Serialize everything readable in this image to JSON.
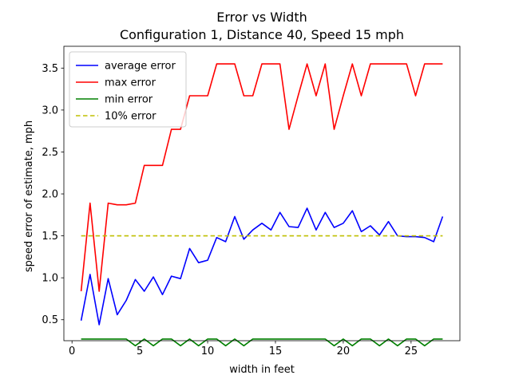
{
  "chart_data": {
    "type": "line",
    "title": "Error vs Width",
    "subtitle": "Configuration 1, Distance 40, Speed 15 mph",
    "xlabel": "width in feet",
    "ylabel": "speed error of estimate, mph",
    "xlim": [
      -0.6,
      28.6
    ],
    "ylim": [
      0.25,
      3.76
    ],
    "xticks": [
      0,
      5,
      10,
      15,
      20,
      25
    ],
    "yticks": [
      0.5,
      1.0,
      1.5,
      2.0,
      2.5,
      3.0,
      3.5
    ],
    "ytick_labels": [
      "0.5",
      "1.0",
      "1.5",
      "2.0",
      "2.5",
      "3.0",
      "3.5"
    ],
    "grid": false,
    "legend_position": "top-left",
    "x": [
      0.67,
      1.33,
      2.0,
      2.67,
      3.33,
      4.0,
      4.67,
      5.33,
      6.0,
      6.67,
      7.33,
      8.0,
      8.67,
      9.33,
      10.0,
      10.67,
      11.33,
      12.0,
      12.67,
      13.33,
      14.0,
      14.67,
      15.33,
      16.0,
      16.67,
      17.33,
      18.0,
      18.67,
      19.33,
      20.0,
      20.67,
      21.33,
      22.0,
      22.67,
      23.33,
      24.0,
      24.67,
      25.33,
      26.0,
      26.67,
      27.33
    ],
    "series": [
      {
        "name": "average error",
        "color": "#0000ff",
        "style": "solid",
        "values": [
          0.49,
          1.04,
          0.44,
          0.99,
          0.56,
          0.73,
          0.98,
          0.84,
          1.01,
          0.8,
          1.02,
          0.99,
          1.35,
          1.18,
          1.21,
          1.48,
          1.43,
          1.73,
          1.46,
          1.57,
          1.65,
          1.57,
          1.78,
          1.61,
          1.6,
          1.83,
          1.57,
          1.78,
          1.6,
          1.65,
          1.8,
          1.55,
          1.62,
          1.51,
          1.67,
          1.5,
          1.49,
          1.49,
          1.48,
          1.43,
          1.73
        ]
      },
      {
        "name": "max error",
        "color": "#ff0000",
        "style": "solid",
        "values": [
          0.84,
          1.89,
          0.84,
          1.89,
          1.87,
          1.87,
          1.89,
          2.34,
          2.34,
          2.34,
          2.77,
          2.77,
          3.17,
          3.17,
          3.17,
          3.55,
          3.55,
          3.55,
          3.17,
          3.17,
          3.55,
          3.55,
          3.55,
          2.77,
          3.17,
          3.55,
          3.17,
          3.55,
          2.77,
          3.17,
          3.55,
          3.17,
          3.55,
          3.55,
          3.55,
          3.55,
          3.55,
          3.17,
          3.55,
          3.55,
          3.55
        ]
      },
      {
        "name": "min error",
        "color": "#008000",
        "style": "solid",
        "values": [
          0.27,
          0.27,
          0.27,
          0.27,
          0.27,
          0.27,
          0.19,
          0.27,
          0.19,
          0.27,
          0.27,
          0.19,
          0.27,
          0.19,
          0.27,
          0.27,
          0.19,
          0.27,
          0.19,
          0.27,
          0.27,
          0.27,
          0.27,
          0.27,
          0.27,
          0.27,
          0.27,
          0.27,
          0.19,
          0.27,
          0.19,
          0.27,
          0.27,
          0.19,
          0.27,
          0.19,
          0.27,
          0.27,
          0.19,
          0.27,
          0.27
        ]
      },
      {
        "name": "10% error",
        "color": "#bfbf00",
        "style": "dashed",
        "values": [
          1.5,
          1.5,
          1.5,
          1.5,
          1.5,
          1.5,
          1.5,
          1.5,
          1.5,
          1.5,
          1.5,
          1.5,
          1.5,
          1.5,
          1.5,
          1.5,
          1.5,
          1.5,
          1.5,
          1.5,
          1.5,
          1.5,
          1.5,
          1.5,
          1.5,
          1.5,
          1.5,
          1.5,
          1.5,
          1.5,
          1.5,
          1.5,
          1.5,
          1.5,
          1.5,
          1.5,
          1.5,
          1.5,
          1.5,
          1.5,
          1.5
        ]
      }
    ]
  }
}
